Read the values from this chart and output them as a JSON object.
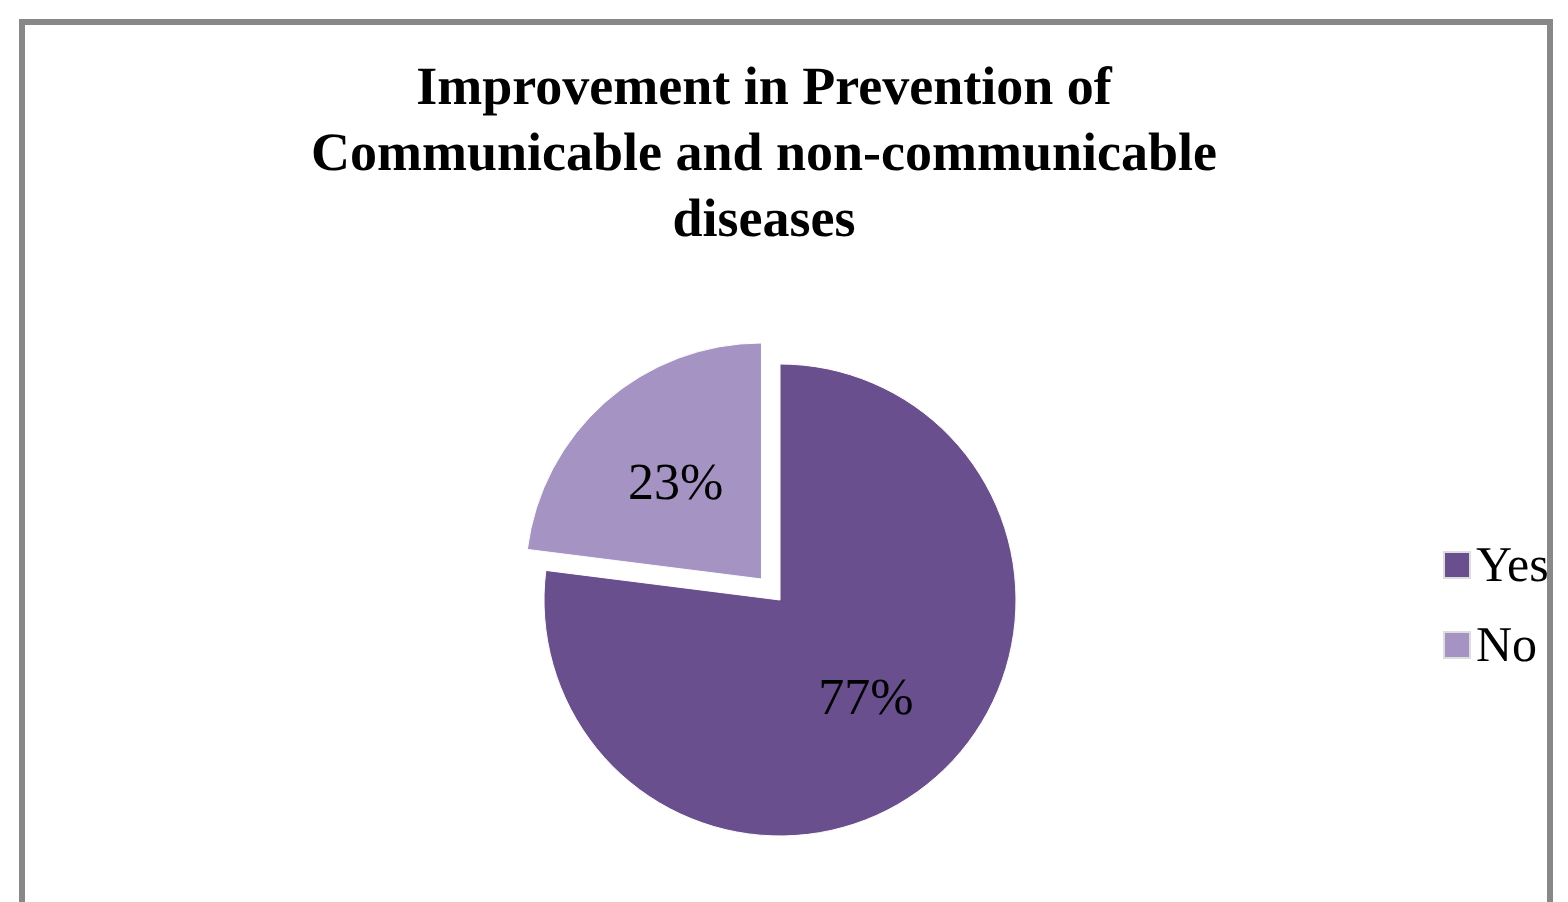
{
  "chart_data": {
    "type": "pie",
    "title": "Improvement in Prevention of Communicable and non-communicable diseases",
    "categories": [
      "Yes",
      "No"
    ],
    "values": [
      77,
      23
    ],
    "colors": [
      "#6a4f8e",
      "#a593c3"
    ],
    "value_labels": [
      "77%",
      "23%"
    ],
    "legend": "right"
  }
}
